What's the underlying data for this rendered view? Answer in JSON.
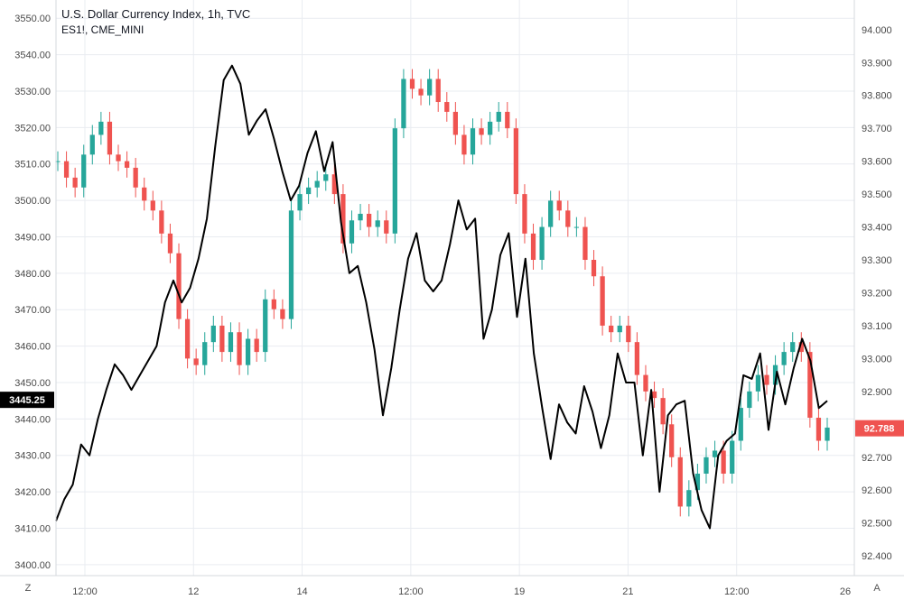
{
  "header": {
    "title": "U.S. Dollar Currency Index, 1h, TVC",
    "subtitle": "ES1!, CME_MINI"
  },
  "controls": {
    "left_btn": "Z",
    "right_btn": "A"
  },
  "colors": {
    "up": "#26a69a",
    "down": "#ef5350",
    "line": "#000000",
    "grid": "#e9ecf1",
    "axis_text": "#4a4a4a",
    "left_badge": "#000000",
    "right_badge": "#ef5350"
  },
  "chart_data": {
    "type": "line",
    "title": "U.S. Dollar Currency Index, 1h, TVC",
    "x_ticks": [
      "12:00",
      "12",
      "14",
      "12:00",
      "19",
      "21",
      "12:00",
      "26"
    ],
    "left_axis": {
      "ticks": [
        "3550.00",
        "3540.00",
        "3530.00",
        "3520.00",
        "3510.00",
        "3500.00",
        "3490.00",
        "3480.00",
        "3470.00",
        "3460.00",
        "3450.00",
        "3440.00",
        "3430.00",
        "3420.00",
        "3410.00",
        "3400.00"
      ],
      "range": [
        3397,
        3555
      ],
      "last_value": "3445.25"
    },
    "right_axis": {
      "ticks": [
        "94.000",
        "93.900",
        "93.800",
        "93.700",
        "93.600",
        "93.500",
        "93.400",
        "93.300",
        "93.200",
        "93.100",
        "93.000",
        "92.900",
        "92.800",
        "92.700",
        "92.600",
        "92.500",
        "92.400"
      ],
      "range": [
        92.34,
        94.09
      ],
      "last_value": "92.788"
    },
    "series": [
      {
        "name": "ES1!",
        "axis": "left",
        "style": "line",
        "values": [
          3412,
          3418,
          3422,
          3433,
          3430,
          3440,
          3448,
          3455,
          3452,
          3448,
          3452,
          3456,
          3460,
          3472,
          3478,
          3472,
          3476,
          3484,
          3495,
          3515,
          3533,
          3537,
          3532,
          3518,
          3522,
          3525,
          3517,
          3508,
          3500,
          3504,
          3513,
          3519,
          3508,
          3516,
          3494,
          3480,
          3482,
          3472,
          3459,
          3441,
          3454,
          3470,
          3484,
          3491,
          3478,
          3475,
          3478,
          3488,
          3500,
          3492,
          3495,
          3462,
          3470,
          3485,
          3491,
          3468,
          3484,
          3458,
          3443,
          3429,
          3444,
          3439,
          3436,
          3449,
          3442,
          3432,
          3441,
          3458,
          3450,
          3450,
          3430,
          3448,
          3420,
          3441,
          3444,
          3445,
          3425,
          3415,
          3410,
          3430,
          3434,
          3436,
          3452,
          3451,
          3458,
          3437,
          3453,
          3444,
          3454,
          3462,
          3456,
          3443,
          3445
        ]
      },
      {
        "name": "U.S. Dollar Currency Index",
        "axis": "right",
        "style": "candles",
        "values": [
          93.6,
          93.55,
          93.52,
          93.62,
          93.68,
          93.72,
          93.62,
          93.6,
          93.58,
          93.52,
          93.48,
          93.45,
          93.38,
          93.32,
          93.12,
          93.0,
          92.98,
          93.05,
          93.1,
          93.02,
          93.08,
          92.98,
          93.06,
          93.02,
          93.18,
          93.15,
          93.12,
          93.45,
          93.5,
          93.52,
          93.54,
          93.56,
          93.5,
          93.35,
          93.42,
          93.44,
          93.4,
          93.42,
          93.38,
          93.7,
          93.85,
          93.82,
          93.8,
          93.85,
          93.78,
          93.75,
          93.68,
          93.62,
          93.7,
          93.68,
          93.72,
          93.75,
          93.7,
          93.5,
          93.38,
          93.3,
          93.4,
          93.48,
          93.45,
          93.4,
          93.4,
          93.3,
          93.25,
          93.1,
          93.08,
          93.1,
          93.05,
          92.95,
          92.9,
          92.88,
          92.8,
          92.7,
          92.55,
          92.6,
          92.65,
          92.7,
          92.72,
          92.65,
          92.75,
          92.85,
          92.9,
          92.95,
          92.92,
          92.98,
          93.02,
          93.05,
          93.02,
          92.82,
          92.75,
          92.79
        ]
      }
    ]
  }
}
